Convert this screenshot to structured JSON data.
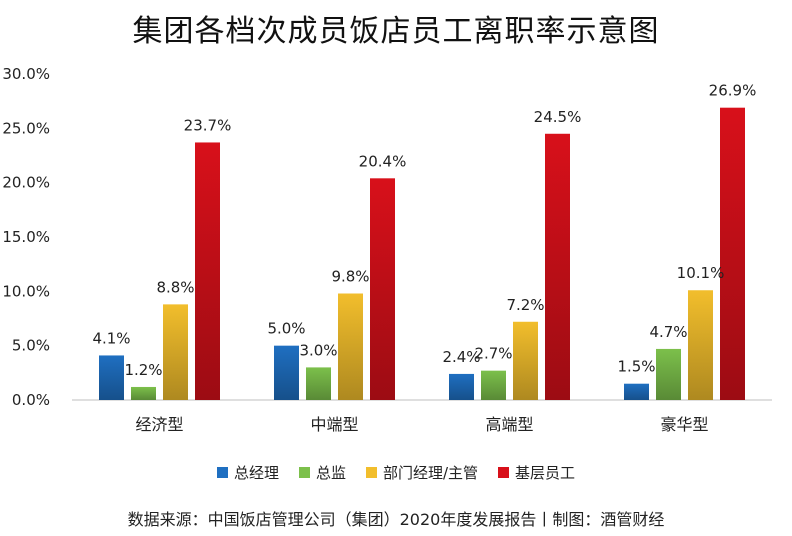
{
  "chart_data": {
    "type": "bar",
    "title": "集团各档次成员饭店员工离职率示意图",
    "categories": [
      "经济型",
      "中端型",
      "高端型",
      "豪华型"
    ],
    "series": [
      {
        "name": "总经理",
        "values": [
          4.1,
          5.0,
          2.4,
          1.5
        ],
        "labels": [
          "4.1%",
          "5.0%",
          "2.4%",
          "1.5%"
        ],
        "color": "#1f6fc1"
      },
      {
        "name": "总监",
        "values": [
          1.2,
          3.0,
          2.7,
          4.7
        ],
        "labels": [
          "1.2%",
          "3.0%",
          "2.7%",
          "4.7%"
        ],
        "color": "#7cc04b"
      },
      {
        "name": "部门经理/主管",
        "values": [
          8.8,
          9.8,
          7.2,
          10.1
        ],
        "labels": [
          "8.8%",
          "9.8%",
          "7.2%",
          "10.1%"
        ],
        "color": "#f2be2c"
      },
      {
        "name": "基层员工",
        "values": [
          23.7,
          20.4,
          24.5,
          26.9
        ],
        "labels": [
          "23.7%",
          "20.4%",
          "24.5%",
          "26.9%"
        ],
        "color": "#d8101a"
      }
    ],
    "yticks": [
      "0.0%",
      "5.0%",
      "10.0%",
      "15.0%",
      "20.0%",
      "25.0%",
      "30.0%"
    ],
    "ylim": [
      0,
      30
    ],
    "xlabel": "",
    "ylabel": "",
    "grid": false,
    "legend_position": "bottom"
  },
  "footer": {
    "source": "数据来源：中国饭店管理公司（集团）2020年度发展报告丨制图：酒管财经"
  }
}
